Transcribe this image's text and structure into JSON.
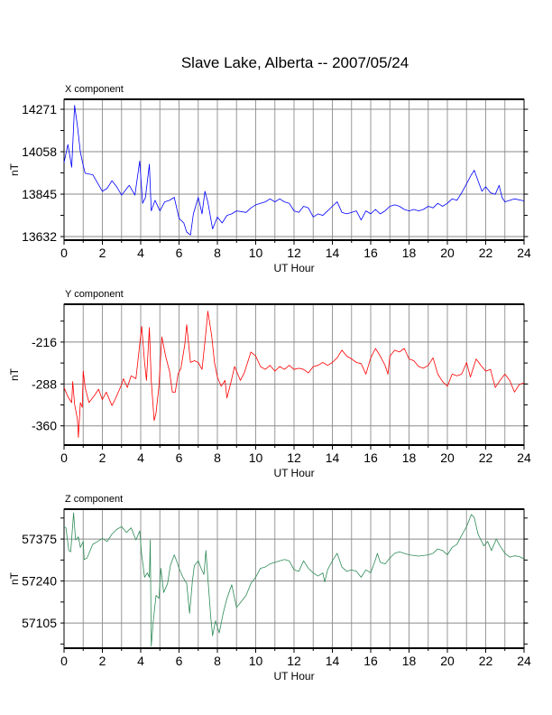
{
  "title": "Slave Lake, Alberta -- 2007/05/24",
  "chart_data": [
    {
      "type": "line",
      "title": "X component",
      "xlabel": "UT Hour",
      "ylabel": "nT",
      "color": "#0000ff",
      "xlim": [
        0,
        24
      ],
      "ylim": [
        13614,
        14321
      ],
      "xticks": [
        0,
        2,
        4,
        6,
        8,
        10,
        12,
        14,
        16,
        18,
        20,
        22,
        24
      ],
      "yticks": [
        13632,
        13845,
        14058,
        14271
      ],
      "grid": true,
      "points": [
        [
          0,
          14003
        ],
        [
          0.2,
          14094
        ],
        [
          0.4,
          13980
        ],
        [
          0.55,
          14291
        ],
        [
          0.7,
          14185
        ],
        [
          0.85,
          14056
        ],
        [
          1.0,
          13988
        ],
        [
          1.1,
          13950
        ],
        [
          1.5,
          13942
        ],
        [
          2.0,
          13859
        ],
        [
          2.25,
          13874
        ],
        [
          2.5,
          13912
        ],
        [
          2.75,
          13882
        ],
        [
          3.0,
          13840
        ],
        [
          3.4,
          13889
        ],
        [
          3.7,
          13840
        ],
        [
          3.95,
          14011
        ],
        [
          4.1,
          13799
        ],
        [
          4.25,
          13829
        ],
        [
          4.45,
          13995
        ],
        [
          4.55,
          13761
        ],
        [
          4.75,
          13814
        ],
        [
          5.0,
          13761
        ],
        [
          5.25,
          13806
        ],
        [
          5.5,
          13814
        ],
        [
          5.75,
          13829
        ],
        [
          6.0,
          13723
        ],
        [
          6.25,
          13700
        ],
        [
          6.4,
          13655
        ],
        [
          6.6,
          13640
        ],
        [
          6.75,
          13746
        ],
        [
          7.0,
          13829
        ],
        [
          7.2,
          13746
        ],
        [
          7.35,
          13859
        ],
        [
          7.5,
          13806
        ],
        [
          7.75,
          13670
        ],
        [
          8.0,
          13730
        ],
        [
          8.25,
          13700
        ],
        [
          8.5,
          13738
        ],
        [
          8.75,
          13746
        ],
        [
          9.0,
          13761
        ],
        [
          9.5,
          13753
        ],
        [
          9.75,
          13776
        ],
        [
          10.0,
          13791
        ],
        [
          10.5,
          13806
        ],
        [
          10.75,
          13821
        ],
        [
          11.0,
          13806
        ],
        [
          11.25,
          13821
        ],
        [
          11.5,
          13806
        ],
        [
          11.75,
          13799
        ],
        [
          12.0,
          13761
        ],
        [
          12.25,
          13753
        ],
        [
          12.5,
          13784
        ],
        [
          12.75,
          13776
        ],
        [
          13.0,
          13730
        ],
        [
          13.25,
          13746
        ],
        [
          13.5,
          13738
        ],
        [
          13.75,
          13761
        ],
        [
          14.0,
          13784
        ],
        [
          14.25,
          13806
        ],
        [
          14.5,
          13753
        ],
        [
          14.75,
          13746
        ],
        [
          15.0,
          13753
        ],
        [
          15.25,
          13761
        ],
        [
          15.5,
          13715
        ],
        [
          15.75,
          13761
        ],
        [
          16.0,
          13746
        ],
        [
          16.25,
          13768
        ],
        [
          16.5,
          13746
        ],
        [
          16.75,
          13761
        ],
        [
          17.0,
          13784
        ],
        [
          17.25,
          13791
        ],
        [
          17.5,
          13784
        ],
        [
          17.75,
          13768
        ],
        [
          18.0,
          13761
        ],
        [
          18.25,
          13768
        ],
        [
          18.5,
          13761
        ],
        [
          18.75,
          13768
        ],
        [
          19.0,
          13784
        ],
        [
          19.25,
          13776
        ],
        [
          19.5,
          13799
        ],
        [
          19.75,
          13784
        ],
        [
          20.0,
          13799
        ],
        [
          20.25,
          13821
        ],
        [
          20.5,
          13814
        ],
        [
          20.75,
          13852
        ],
        [
          21.0,
          13897
        ],
        [
          21.25,
          13942
        ],
        [
          21.4,
          13965
        ],
        [
          21.6,
          13912
        ],
        [
          21.8,
          13859
        ],
        [
          22.0,
          13882
        ],
        [
          22.25,
          13852
        ],
        [
          22.5,
          13844
        ],
        [
          22.7,
          13889
        ],
        [
          22.85,
          13829
        ],
        [
          23.0,
          13806
        ],
        [
          23.5,
          13821
        ],
        [
          24.0,
          13811
        ]
      ]
    },
    {
      "type": "line",
      "title": "Y component",
      "xlabel": "UT Hour",
      "ylabel": "nT",
      "color": "#ff0000",
      "xlim": [
        0,
        24
      ],
      "ylim": [
        -393,
        -151
      ],
      "xticks": [
        0,
        2,
        4,
        6,
        8,
        10,
        12,
        14,
        16,
        18,
        20,
        22,
        24
      ],
      "yticks": [
        -360,
        -288,
        -216
      ],
      "grid": true,
      "points": [
        [
          0,
          -294
        ],
        [
          0.2,
          -310
        ],
        [
          0.4,
          -320
        ],
        [
          0.45,
          -284
        ],
        [
          0.55,
          -323
        ],
        [
          0.7,
          -349
        ],
        [
          0.75,
          -380
        ],
        [
          0.85,
          -320
        ],
        [
          0.95,
          -328
        ],
        [
          1.0,
          -266
        ],
        [
          1.1,
          -294
        ],
        [
          1.3,
          -320
        ],
        [
          1.6,
          -307
        ],
        [
          1.8,
          -297
        ],
        [
          2.0,
          -315
        ],
        [
          2.2,
          -302
        ],
        [
          2.5,
          -325
        ],
        [
          2.7,
          -312
        ],
        [
          3.0,
          -289
        ],
        [
          3.1,
          -279
        ],
        [
          3.3,
          -294
        ],
        [
          3.5,
          -274
        ],
        [
          3.75,
          -279
        ],
        [
          3.95,
          -220
        ],
        [
          4.05,
          -189
        ],
        [
          4.2,
          -251
        ],
        [
          4.3,
          -282
        ],
        [
          4.45,
          -191
        ],
        [
          4.55,
          -282
        ],
        [
          4.7,
          -351
        ],
        [
          4.8,
          -338
        ],
        [
          4.95,
          -292
        ],
        [
          5.1,
          -207
        ],
        [
          5.3,
          -240
        ],
        [
          5.5,
          -266
        ],
        [
          5.65,
          -302
        ],
        [
          5.8,
          -302
        ],
        [
          5.95,
          -271
        ],
        [
          6.1,
          -261
        ],
        [
          6.3,
          -220
        ],
        [
          6.4,
          -186
        ],
        [
          6.6,
          -251
        ],
        [
          6.8,
          -248
        ],
        [
          7.0,
          -251
        ],
        [
          7.2,
          -263
        ],
        [
          7.4,
          -199
        ],
        [
          7.5,
          -163
        ],
        [
          7.7,
          -204
        ],
        [
          7.85,
          -251
        ],
        [
          8.0,
          -276
        ],
        [
          8.2,
          -292
        ],
        [
          8.4,
          -282
        ],
        [
          8.5,
          -312
        ],
        [
          8.7,
          -286
        ],
        [
          8.9,
          -258
        ],
        [
          9.2,
          -282
        ],
        [
          9.4,
          -269
        ],
        [
          9.75,
          -233
        ],
        [
          10.0,
          -240
        ],
        [
          10.25,
          -258
        ],
        [
          10.5,
          -263
        ],
        [
          10.75,
          -256
        ],
        [
          11.0,
          -266
        ],
        [
          11.25,
          -258
        ],
        [
          11.5,
          -263
        ],
        [
          11.75,
          -256
        ],
        [
          12.0,
          -263
        ],
        [
          12.25,
          -261
        ],
        [
          12.5,
          -263
        ],
        [
          12.75,
          -269
        ],
        [
          13.0,
          -258
        ],
        [
          13.25,
          -256
        ],
        [
          13.5,
          -251
        ],
        [
          13.75,
          -256
        ],
        [
          14.0,
          -251
        ],
        [
          14.25,
          -243
        ],
        [
          14.5,
          -230
        ],
        [
          14.75,
          -240
        ],
        [
          15.0,
          -245
        ],
        [
          15.25,
          -251
        ],
        [
          15.5,
          -253
        ],
        [
          15.75,
          -271
        ],
        [
          16.0,
          -243
        ],
        [
          16.25,
          -227
        ],
        [
          16.5,
          -240
        ],
        [
          16.75,
          -256
        ],
        [
          16.9,
          -271
        ],
        [
          17.0,
          -240
        ],
        [
          17.25,
          -230
        ],
        [
          17.5,
          -233
        ],
        [
          17.75,
          -227
        ],
        [
          18.0,
          -245
        ],
        [
          18.25,
          -248
        ],
        [
          18.5,
          -258
        ],
        [
          18.75,
          -261
        ],
        [
          19.0,
          -256
        ],
        [
          19.25,
          -243
        ],
        [
          19.5,
          -271
        ],
        [
          19.75,
          -284
        ],
        [
          20.0,
          -292
        ],
        [
          20.25,
          -271
        ],
        [
          20.5,
          -274
        ],
        [
          20.75,
          -271
        ],
        [
          21.0,
          -251
        ],
        [
          21.2,
          -276
        ],
        [
          21.5,
          -245
        ],
        [
          21.75,
          -256
        ],
        [
          22.0,
          -266
        ],
        [
          22.25,
          -263
        ],
        [
          22.5,
          -294
        ],
        [
          22.75,
          -282
        ],
        [
          23.0,
          -271
        ],
        [
          23.25,
          -282
        ],
        [
          23.5,
          -302
        ],
        [
          23.75,
          -289
        ],
        [
          24.0,
          -286
        ]
      ]
    },
    {
      "type": "line",
      "title": "Z component",
      "xlabel": "UT Hour",
      "ylabel": "nT",
      "color": "#2e8b57",
      "xlim": [
        0,
        24
      ],
      "ylim": [
        57024,
        57471
      ],
      "xticks": [
        0,
        2,
        4,
        6,
        8,
        10,
        12,
        14,
        16,
        18,
        20,
        22,
        24
      ],
      "yticks": [
        57105,
        57240,
        57375
      ],
      "grid": true,
      "points": [
        [
          0,
          57415
        ],
        [
          0.1,
          57411
        ],
        [
          0.25,
          57338
        ],
        [
          0.35,
          57334
        ],
        [
          0.5,
          57459
        ],
        [
          0.6,
          57372
        ],
        [
          0.75,
          57382
        ],
        [
          0.85,
          57348
        ],
        [
          1.0,
          57367
        ],
        [
          1.05,
          57309
        ],
        [
          1.2,
          57314
        ],
        [
          1.5,
          57358
        ],
        [
          1.75,
          57367
        ],
        [
          2.0,
          57377
        ],
        [
          2.25,
          57367
        ],
        [
          2.5,
          57391
        ],
        [
          2.75,
          57406
        ],
        [
          3.0,
          57415
        ],
        [
          3.25,
          57396
        ],
        [
          3.5,
          57411
        ],
        [
          3.75,
          57372
        ],
        [
          3.95,
          57401
        ],
        [
          4.05,
          57324
        ],
        [
          4.2,
          57252
        ],
        [
          4.35,
          57266
        ],
        [
          4.45,
          57252
        ],
        [
          4.5,
          57372
        ],
        [
          4.55,
          57030
        ],
        [
          4.65,
          57107
        ],
        [
          4.8,
          57194
        ],
        [
          4.95,
          57184
        ],
        [
          5.05,
          57281
        ],
        [
          5.2,
          57203
        ],
        [
          5.4,
          57232
        ],
        [
          5.55,
          57290
        ],
        [
          5.75,
          57324
        ],
        [
          5.9,
          57300
        ],
        [
          6.0,
          57281
        ],
        [
          6.2,
          57252
        ],
        [
          6.4,
          57232
        ],
        [
          6.55,
          57136
        ],
        [
          6.7,
          57242
        ],
        [
          6.8,
          57290
        ],
        [
          7.0,
          57305
        ],
        [
          7.15,
          57281
        ],
        [
          7.3,
          57261
        ],
        [
          7.4,
          57338
        ],
        [
          7.5,
          57252
        ],
        [
          7.65,
          57126
        ],
        [
          7.75,
          57064
        ],
        [
          7.9,
          57112
        ],
        [
          8.1,
          57073
        ],
        [
          8.3,
          57136
        ],
        [
          8.5,
          57184
        ],
        [
          8.75,
          57228
        ],
        [
          9.0,
          57155
        ],
        [
          9.25,
          57174
        ],
        [
          9.5,
          57194
        ],
        [
          9.75,
          57232
        ],
        [
          10.0,
          57252
        ],
        [
          10.25,
          57281
        ],
        [
          10.5,
          57285
        ],
        [
          10.75,
          57295
        ],
        [
          11.0,
          57300
        ],
        [
          11.25,
          57305
        ],
        [
          11.5,
          57309
        ],
        [
          11.75,
          57305
        ],
        [
          12.0,
          57276
        ],
        [
          12.25,
          57271
        ],
        [
          12.5,
          57305
        ],
        [
          12.75,
          57281
        ],
        [
          13.0,
          57266
        ],
        [
          13.25,
          57256
        ],
        [
          13.5,
          57266
        ],
        [
          13.6,
          57237
        ],
        [
          13.75,
          57276
        ],
        [
          14.0,
          57305
        ],
        [
          14.25,
          57329
        ],
        [
          14.5,
          57285
        ],
        [
          14.75,
          57271
        ],
        [
          15.0,
          57276
        ],
        [
          15.25,
          57271
        ],
        [
          15.5,
          57252
        ],
        [
          15.75,
          57276
        ],
        [
          16.0,
          57266
        ],
        [
          16.25,
          57309
        ],
        [
          16.35,
          57329
        ],
        [
          16.5,
          57300
        ],
        [
          16.75,
          57295
        ],
        [
          17.0,
          57314
        ],
        [
          17.25,
          57329
        ],
        [
          17.5,
          57334
        ],
        [
          18.0,
          57324
        ],
        [
          18.5,
          57320
        ],
        [
          19.0,
          57324
        ],
        [
          19.25,
          57329
        ],
        [
          19.5,
          57343
        ],
        [
          19.75,
          57338
        ],
        [
          20.0,
          57324
        ],
        [
          20.25,
          57348
        ],
        [
          20.5,
          57358
        ],
        [
          20.75,
          57387
        ],
        [
          21.0,
          57415
        ],
        [
          21.25,
          57454
        ],
        [
          21.4,
          57444
        ],
        [
          21.6,
          57391
        ],
        [
          21.75,
          57372
        ],
        [
          21.9,
          57353
        ],
        [
          22.1,
          57367
        ],
        [
          22.3,
          57338
        ],
        [
          22.55,
          57375
        ],
        [
          22.75,
          57353
        ],
        [
          23.0,
          57329
        ],
        [
          23.25,
          57317
        ],
        [
          23.5,
          57321
        ],
        [
          23.75,
          57319
        ],
        [
          24.0,
          57311
        ]
      ]
    }
  ]
}
